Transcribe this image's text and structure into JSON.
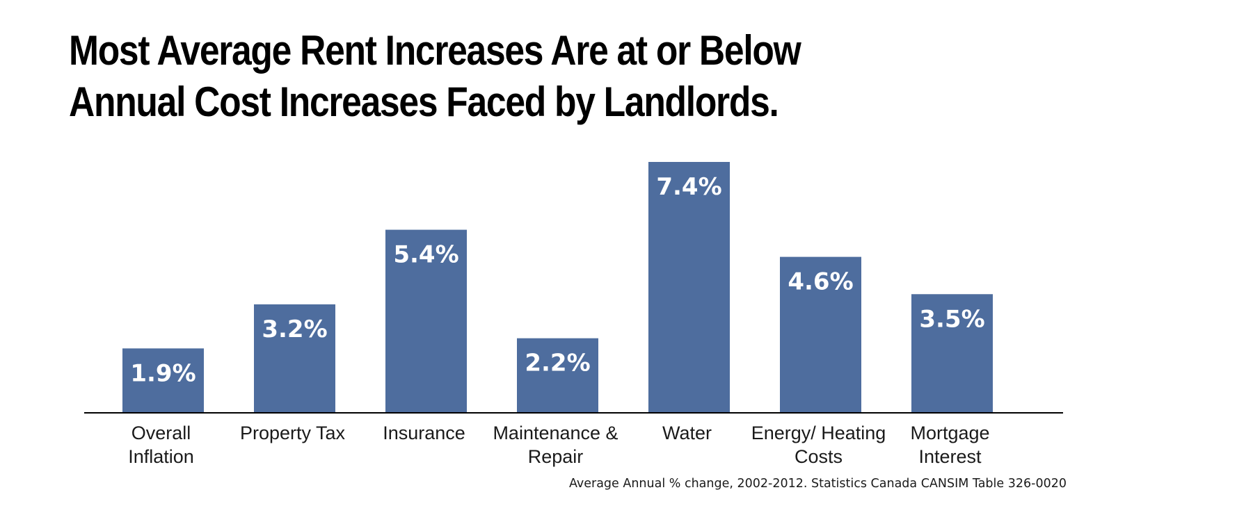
{
  "title": {
    "line1": "Most Average Rent Increases Are at or Below",
    "line2": "Annual Cost Increases Faced by Landlords."
  },
  "source": "Average Annual % change, 2002-2012. Statistics Canada CANSIM Table 326-0020",
  "chart_data": {
    "type": "bar",
    "title": "Most Average Rent Increases Are at or Below Annual Cost Increases Faced by Landlords.",
    "categories": [
      [
        "Overall",
        "Inflation"
      ],
      [
        "Property Tax"
      ],
      [
        "Insurance"
      ],
      [
        "Maintenance &",
        "Repair"
      ],
      [
        "Water"
      ],
      [
        "Energy/ Heating",
        "Costs"
      ],
      [
        "Mortgage",
        "Interest"
      ]
    ],
    "values": [
      1.9,
      3.2,
      5.4,
      2.2,
      7.4,
      4.6,
      3.5
    ],
    "value_labels": [
      "1.9%",
      "3.2%",
      "5.4%",
      "2.2%",
      "7.4%",
      "4.6%",
      "3.5%"
    ],
    "bar_color": "#4e6d9e",
    "axis_color": "#000000",
    "label_color": "#ffffff",
    "ylim": [
      0,
      7.4
    ],
    "grid": false,
    "legend": "none"
  }
}
